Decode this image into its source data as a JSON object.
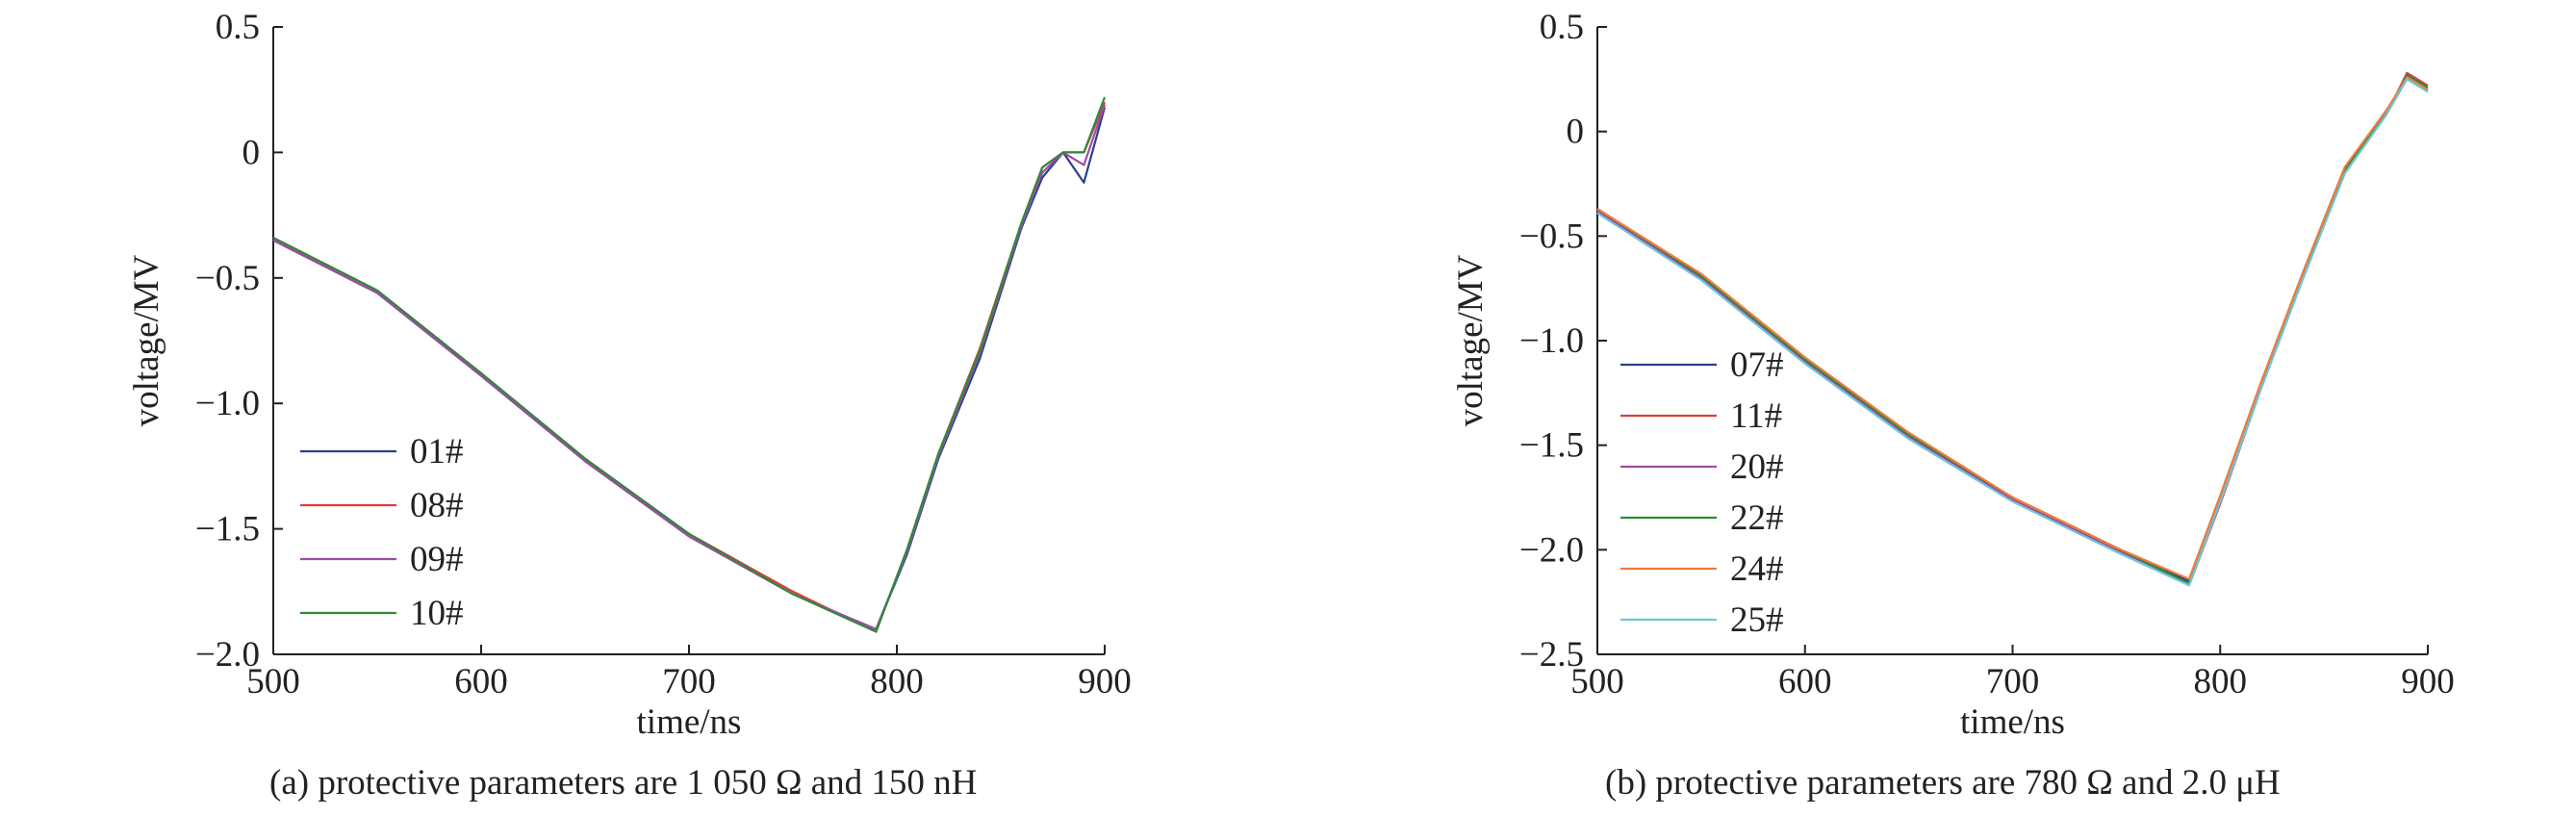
{
  "chart_data": [
    {
      "type": "line",
      "panel": "a",
      "caption": "(a) protective parameters are 1 050 Ω and 150 nH",
      "xlabel": "time/ns",
      "ylabel": "voltage/MV",
      "xlim": [
        500,
        900
      ],
      "ylim": [
        -2.0,
        0.5
      ],
      "x_ticks": [
        500,
        600,
        700,
        800,
        900
      ],
      "x_tick_labels": [
        "500",
        "600",
        "700",
        "800",
        "900"
      ],
      "y_ticks": [
        0.5,
        0,
        -0.5,
        -1.0,
        -1.5,
        -2.0
      ],
      "y_tick_labels": [
        "0.5",
        "0",
        "−0.5",
        "−1.0",
        "−1.5",
        "−2.0"
      ],
      "grid": false,
      "legend_position": "bottom-left",
      "series": [
        {
          "name": "01#",
          "color": "#2b3f8f",
          "values": [
            [
              500,
              -0.35
            ],
            [
              550,
              -0.56
            ],
            [
              600,
              -0.89
            ],
            [
              650,
              -1.23
            ],
            [
              700,
              -1.53
            ],
            [
              750,
              -1.76
            ],
            [
              790,
              -1.9
            ],
            [
              805,
              -1.6
            ],
            [
              820,
              -1.22
            ],
            [
              840,
              -0.82
            ],
            [
              860,
              -0.3
            ],
            [
              870,
              -0.1
            ],
            [
              880,
              0.0
            ],
            [
              890,
              -0.12
            ],
            [
              900,
              0.18
            ]
          ]
        },
        {
          "name": "08#",
          "color": "#e03b3b",
          "values": [
            [
              500,
              -0.34
            ],
            [
              550,
              -0.55
            ],
            [
              600,
              -0.88
            ],
            [
              650,
              -1.22
            ],
            [
              700,
              -1.52
            ],
            [
              750,
              -1.75
            ],
            [
              790,
              -1.91
            ],
            [
              805,
              -1.58
            ],
            [
              820,
              -1.2
            ],
            [
              840,
              -0.78
            ],
            [
              860,
              -0.28
            ],
            [
              870,
              -0.06
            ],
            [
              880,
              0.0
            ],
            [
              890,
              0.0
            ],
            [
              900,
              0.2
            ]
          ]
        },
        {
          "name": "09#",
          "color": "#a04aa6",
          "values": [
            [
              500,
              -0.35
            ],
            [
              550,
              -0.56
            ],
            [
              600,
              -0.89
            ],
            [
              650,
              -1.23
            ],
            [
              700,
              -1.53
            ],
            [
              750,
              -1.76
            ],
            [
              790,
              -1.9
            ],
            [
              805,
              -1.59
            ],
            [
              820,
              -1.21
            ],
            [
              840,
              -0.8
            ],
            [
              860,
              -0.29
            ],
            [
              870,
              -0.08
            ],
            [
              880,
              0.0
            ],
            [
              890,
              -0.05
            ],
            [
              900,
              0.19
            ]
          ]
        },
        {
          "name": "10#",
          "color": "#2f8a3a",
          "values": [
            [
              500,
              -0.34
            ],
            [
              550,
              -0.55
            ],
            [
              600,
              -0.88
            ],
            [
              650,
              -1.22
            ],
            [
              700,
              -1.52
            ],
            [
              750,
              -1.76
            ],
            [
              790,
              -1.91
            ],
            [
              805,
              -1.58
            ],
            [
              820,
              -1.2
            ],
            [
              840,
              -0.79
            ],
            [
              860,
              -0.28
            ],
            [
              870,
              -0.06
            ],
            [
              880,
              0.0
            ],
            [
              890,
              0.0
            ],
            [
              900,
              0.22
            ]
          ]
        }
      ]
    },
    {
      "type": "line",
      "panel": "b",
      "caption": "(b) protective parameters are 780 Ω and 2.0 μH",
      "xlabel": "time/ns",
      "ylabel": "voltage/MV",
      "xlim": [
        500,
        900
      ],
      "ylim": [
        -2.5,
        0.5
      ],
      "x_ticks": [
        500,
        600,
        700,
        800,
        900
      ],
      "x_tick_labels": [
        "500",
        "600",
        "700",
        "800",
        "900"
      ],
      "y_ticks": [
        0.5,
        0,
        -0.5,
        -1.0,
        -1.5,
        -2.0,
        -2.5
      ],
      "y_tick_labels": [
        "0.5",
        "0",
        "−0.5",
        "−1.0",
        "−1.5",
        "−2.0",
        "−2.5"
      ],
      "grid": false,
      "legend_position": "bottom-left",
      "series": [
        {
          "name": "07#",
          "color": "#2b3f8f",
          "values": [
            [
              500,
              -0.38
            ],
            [
              550,
              -0.7
            ],
            [
              600,
              -1.1
            ],
            [
              650,
              -1.46
            ],
            [
              700,
              -1.76
            ],
            [
              750,
              -1.99
            ],
            [
              785,
              -2.15
            ],
            [
              800,
              -1.75
            ],
            [
              820,
              -1.2
            ],
            [
              840,
              -0.68
            ],
            [
              860,
              -0.18
            ],
            [
              880,
              0.1
            ],
            [
              890,
              0.25
            ],
            [
              900,
              0.2
            ]
          ]
        },
        {
          "name": "11#",
          "color": "#e03b3b",
          "values": [
            [
              500,
              -0.37
            ],
            [
              550,
              -0.69
            ],
            [
              600,
              -1.09
            ],
            [
              650,
              -1.45
            ],
            [
              700,
              -1.75
            ],
            [
              750,
              -1.99
            ],
            [
              785,
              -2.17
            ],
            [
              800,
              -1.78
            ],
            [
              820,
              -1.22
            ],
            [
              840,
              -0.7
            ],
            [
              860,
              -0.2
            ],
            [
              880,
              0.08
            ],
            [
              890,
              0.28
            ],
            [
              900,
              0.22
            ]
          ]
        },
        {
          "name": "20#",
          "color": "#a04aa6",
          "values": [
            [
              500,
              -0.38
            ],
            [
              550,
              -0.7
            ],
            [
              600,
              -1.1
            ],
            [
              650,
              -1.46
            ],
            [
              700,
              -1.76
            ],
            [
              750,
              -2.0
            ],
            [
              785,
              -2.16
            ],
            [
              800,
              -1.76
            ],
            [
              820,
              -1.21
            ],
            [
              840,
              -0.69
            ],
            [
              860,
              -0.19
            ],
            [
              880,
              0.09
            ],
            [
              890,
              0.26
            ],
            [
              900,
              0.2
            ]
          ]
        },
        {
          "name": "22#",
          "color": "#2f8a3a",
          "values": [
            [
              500,
              -0.37
            ],
            [
              550,
              -0.69
            ],
            [
              600,
              -1.09
            ],
            [
              650,
              -1.45
            ],
            [
              700,
              -1.75
            ],
            [
              750,
              -1.99
            ],
            [
              785,
              -2.16
            ],
            [
              800,
              -1.77
            ],
            [
              820,
              -1.21
            ],
            [
              840,
              -0.69
            ],
            [
              860,
              -0.19
            ],
            [
              880,
              0.09
            ],
            [
              890,
              0.27
            ],
            [
              900,
              0.21
            ]
          ]
        },
        {
          "name": "24#",
          "color": "#f07c3a",
          "values": [
            [
              500,
              -0.37
            ],
            [
              550,
              -0.68
            ],
            [
              600,
              -1.08
            ],
            [
              650,
              -1.44
            ],
            [
              700,
              -1.75
            ],
            [
              750,
              -1.99
            ],
            [
              785,
              -2.14
            ],
            [
              800,
              -1.74
            ],
            [
              820,
              -1.19
            ],
            [
              840,
              -0.67
            ],
            [
              860,
              -0.17
            ],
            [
              880,
              0.1
            ],
            [
              890,
              0.26
            ],
            [
              900,
              0.2
            ]
          ]
        },
        {
          "name": "25#",
          "color": "#6cc6d8",
          "values": [
            [
              500,
              -0.39
            ],
            [
              550,
              -0.71
            ],
            [
              600,
              -1.11
            ],
            [
              650,
              -1.47
            ],
            [
              700,
              -1.77
            ],
            [
              750,
              -2.01
            ],
            [
              785,
              -2.17
            ],
            [
              800,
              -1.77
            ],
            [
              820,
              -1.22
            ],
            [
              840,
              -0.7
            ],
            [
              860,
              -0.2
            ],
            [
              880,
              0.08
            ],
            [
              890,
              0.25
            ],
            [
              900,
              0.19
            ]
          ]
        }
      ]
    }
  ]
}
